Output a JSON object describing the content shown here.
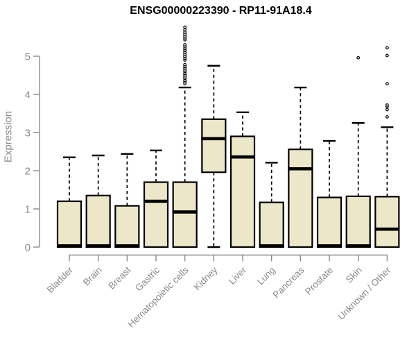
{
  "chart_data": {
    "type": "boxplot",
    "title": "ENSG00000223390 - RP11-91A18.4",
    "ylabel": "Expression",
    "xlabel": "",
    "ylim": [
      0,
      5.8
    ],
    "yticks": [
      0,
      1,
      2,
      3,
      4,
      5
    ],
    "grid": false,
    "legend": "none",
    "box_fill": "#EDE7CA",
    "box_border": "#000000",
    "axis_color": "#8a8a8a",
    "title_color": "#000000",
    "categories": [
      "Bladder",
      "Brain",
      "Breast",
      "Gastric",
      "Hematopoietic cells",
      "Kidney",
      "Liver",
      "Lung",
      "Pancreas",
      "Prostate",
      "Skin",
      "Unknown / Other"
    ],
    "series": [
      {
        "name": "Bladder",
        "whisker_low": 0,
        "q1": 0,
        "median": 0.03,
        "q3": 1.2,
        "whisker_high": 2.35,
        "outliers": []
      },
      {
        "name": "Brain",
        "whisker_low": 0,
        "q1": 0,
        "median": 0.03,
        "q3": 1.35,
        "whisker_high": 2.4,
        "outliers": []
      },
      {
        "name": "Breast",
        "whisker_low": 0,
        "q1": 0,
        "median": 0.03,
        "q3": 1.08,
        "whisker_high": 2.44,
        "outliers": []
      },
      {
        "name": "Gastric",
        "whisker_low": 0,
        "q1": 0,
        "median": 1.2,
        "q3": 1.7,
        "whisker_high": 2.53,
        "outliers": []
      },
      {
        "name": "Hematopoietic cells",
        "whisker_low": 0,
        "q1": 0,
        "median": 0.92,
        "q3": 1.7,
        "whisker_high": 4.18,
        "outliers": [
          4.28,
          4.33,
          4.37,
          4.42,
          4.46,
          4.51,
          4.55,
          4.6,
          4.64,
          4.69,
          4.73,
          4.78,
          4.9,
          4.95,
          5.0,
          5.05,
          5.1,
          5.15,
          5.2,
          5.25,
          5.3,
          5.43,
          5.48,
          5.53,
          5.58,
          5.63,
          5.69,
          5.76
        ]
      },
      {
        "name": "Kidney",
        "whisker_low": 0,
        "q1": 1.96,
        "median": 2.84,
        "q3": 3.35,
        "whisker_high": 4.75,
        "outliers": []
      },
      {
        "name": "Liver",
        "whisker_low": 0,
        "q1": 0,
        "median": 2.36,
        "q3": 2.9,
        "whisker_high": 3.53,
        "outliers": []
      },
      {
        "name": "Lung",
        "whisker_low": 0,
        "q1": 0,
        "median": 0.03,
        "q3": 1.17,
        "whisker_high": 2.21,
        "outliers": []
      },
      {
        "name": "Pancreas",
        "whisker_low": 0,
        "q1": 0,
        "median": 2.05,
        "q3": 2.56,
        "whisker_high": 4.18,
        "outliers": []
      },
      {
        "name": "Prostate",
        "whisker_low": 0,
        "q1": 0,
        "median": 0.03,
        "q3": 1.3,
        "whisker_high": 2.78,
        "outliers": []
      },
      {
        "name": "Skin",
        "whisker_low": 0,
        "q1": 0,
        "median": 0.03,
        "q3": 1.33,
        "whisker_high": 3.25,
        "outliers": [
          4.96
        ]
      },
      {
        "name": "Unknown / Other",
        "whisker_low": 0,
        "q1": 0,
        "median": 0.47,
        "q3": 1.32,
        "whisker_high": 3.14,
        "outliers": [
          3.41,
          3.6,
          3.68,
          3.72,
          4.28,
          5.02,
          5.22
        ]
      }
    ]
  }
}
